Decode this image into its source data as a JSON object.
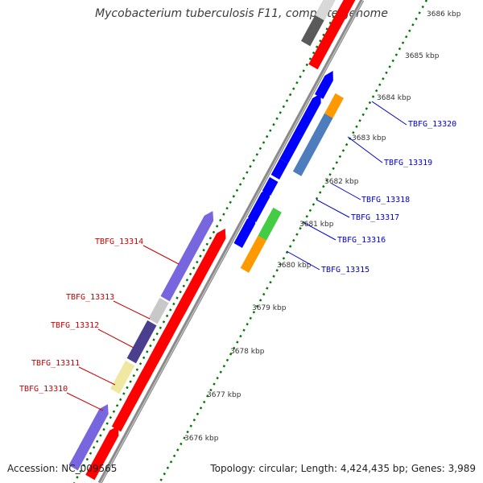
{
  "title": "Mycobacterium tuberculosis F11, complete genome",
  "footer": {
    "accession": "Accession: NC_009565",
    "summary": "Topology: circular; Length: 4,424,435 bp; Genes: 3,989"
  },
  "ticks": [
    "3686 kbp",
    "3685 kbp",
    "3684 kbp",
    "3683 kbp",
    "3682 kbp",
    "3681 kbp",
    "3680 kbp",
    "3679 kbp",
    "3678 kbp",
    "3677 kbp",
    "3676 kbp"
  ],
  "labels_left": [
    "TBFG_13314",
    "TBFG_13313",
    "TBFG_13312",
    "TBFG_13311",
    "TBFG_13310"
  ],
  "labels_right": [
    "TBFG_13320",
    "TBFG_13319",
    "TBFG_13318",
    "TBFG_13317",
    "TBFG_13316",
    "TBFG_13315"
  ],
  "colors": {
    "backbone": "#8a8a8a",
    "cds_red": "#ff0000",
    "cds_blue": "#0000ff",
    "tick_green": "#007700",
    "label_red": "#cc0000",
    "label_blue": "#0000cc"
  }
}
